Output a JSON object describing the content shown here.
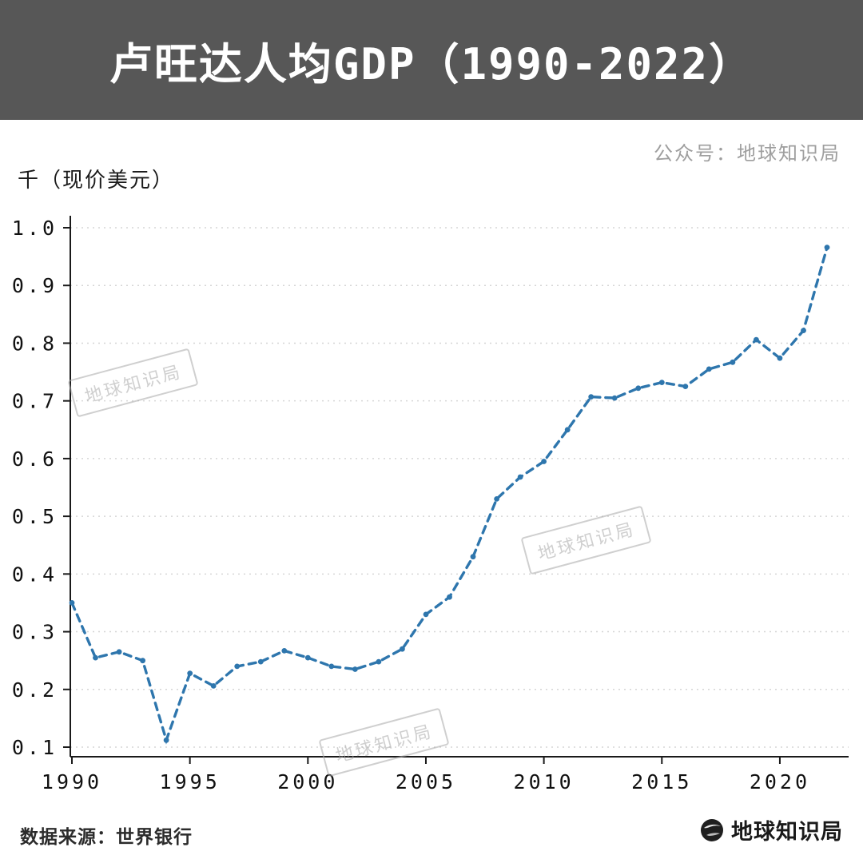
{
  "header": {
    "title": "卢旺达人均GDP（1990-2022）"
  },
  "credit": "公众号：地球知识局",
  "unit_label": "千（现价美元）",
  "watermark": {
    "text": "地球知识局"
  },
  "footer": {
    "source": "数据来源：世界银行",
    "brand": "地球知识局"
  },
  "chart_data": {
    "type": "line",
    "title": "卢旺达人均GDP（1990-2022）",
    "ylabel": "千（现价美元）",
    "x": [
      1990,
      1991,
      1992,
      1993,
      1994,
      1995,
      1996,
      1997,
      1998,
      1999,
      2000,
      2001,
      2002,
      2003,
      2004,
      2005,
      2006,
      2007,
      2008,
      2009,
      2010,
      2011,
      2012,
      2013,
      2014,
      2015,
      2016,
      2017,
      2018,
      2019,
      2020,
      2021,
      2022
    ],
    "values": [
      0.35,
      0.255,
      0.265,
      0.25,
      0.112,
      0.228,
      0.206,
      0.24,
      0.248,
      0.267,
      0.255,
      0.24,
      0.235,
      0.248,
      0.27,
      0.33,
      0.36,
      0.43,
      0.53,
      0.568,
      0.595,
      0.65,
      0.707,
      0.705,
      0.722,
      0.732,
      0.725,
      0.755,
      0.767,
      0.806,
      0.774,
      0.822,
      0.966
    ],
    "ylim": [
      0.1,
      1.0
    ],
    "yticks": [
      0.1,
      0.2,
      0.3,
      0.4,
      0.5,
      0.6,
      0.7,
      0.8,
      0.9,
      1.0
    ],
    "ytick_labels": [
      "0.1",
      "0.2",
      "0.3",
      "0.4",
      "0.5",
      "0.6",
      "0.7",
      "0.8",
      "0.9",
      "1.0"
    ],
    "xticks": [
      1990,
      1995,
      2000,
      2005,
      2010,
      2015,
      2020
    ],
    "xtick_labels": [
      "1990",
      "1995",
      "2000",
      "2005",
      "2010",
      "2015",
      "2020"
    ],
    "line_color": "#2e76ad",
    "grid": true,
    "legend": "none"
  }
}
